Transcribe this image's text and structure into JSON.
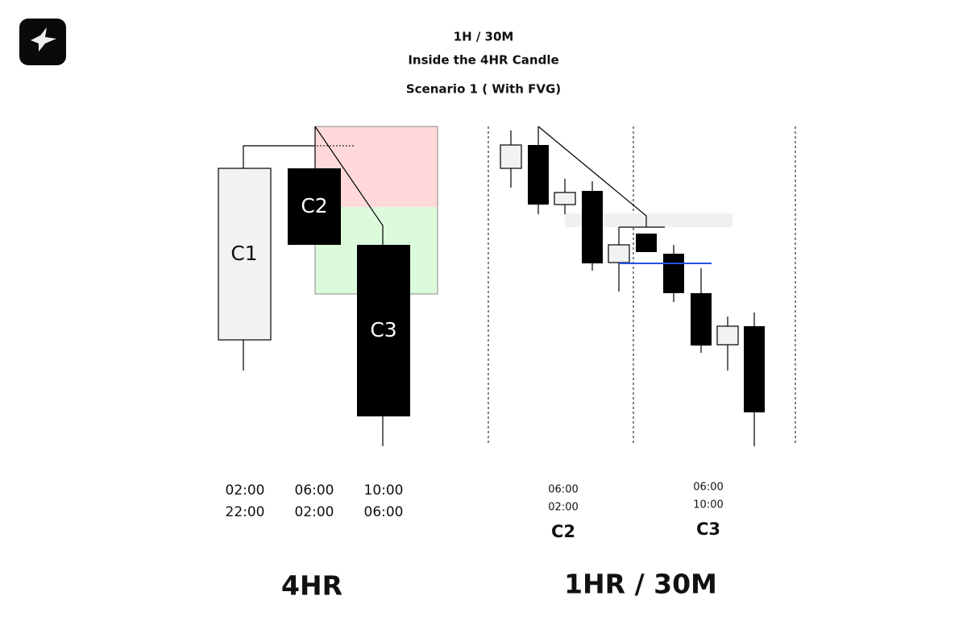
{
  "header": {
    "line1": "1H / 30M",
    "line2": "Inside the 4HR Candle",
    "line3": "Scenario 1 ( With FVG)"
  },
  "left_panel": {
    "candles": [
      {
        "label": "C1",
        "times": [
          "02:00",
          "22:00"
        ]
      },
      {
        "label": "C2",
        "times": [
          "06:00",
          "02:00"
        ]
      },
      {
        "label": "C3",
        "times": [
          "10:00",
          "06:00"
        ]
      }
    ],
    "caption": "4HR"
  },
  "right_panel": {
    "sections": [
      {
        "times": [
          "06:00",
          "02:00"
        ],
        "label": "C2"
      },
      {
        "times": [
          "06:00",
          "10:00"
        ],
        "label": "C3"
      }
    ],
    "caption": "1HR / 30M"
  }
}
